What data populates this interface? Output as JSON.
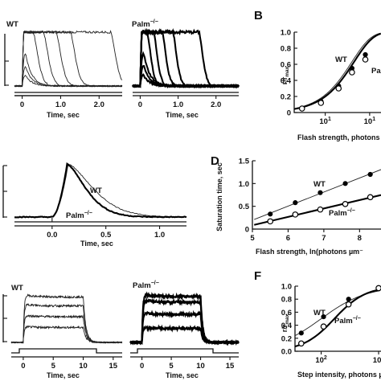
{
  "panels": {
    "a_wt": {
      "label": "WT",
      "xlabel": "Time, sec",
      "xticks": [
        "0",
        "1.0",
        "2.0"
      ]
    },
    "a_palm": {
      "label_main": "Palm",
      "label_sup": "−/−",
      "xlabel": "Time, sec",
      "xticks": [
        "0",
        "1.0",
        "2.0"
      ]
    },
    "b": {
      "letter": "B",
      "ylabel_r": "r/r",
      "ylabel_sub": "max",
      "xlabel": "Flash strength, photons",
      "yticks": [
        "0",
        "0.2",
        "0.4",
        "0.6",
        "0.8",
        "1.0"
      ],
      "xticks": [
        "10",
        "10"
      ],
      "xtick_exp": "1",
      "legend_wt": "WT",
      "legend_palm": "Pa"
    },
    "c": {
      "xlabel": "Time, sec",
      "xticks": [
        "0.0",
        "0.5",
        "1.0"
      ],
      "legend_wt": "WT",
      "legend_palm_main": "Palm",
      "legend_palm_sup": "−/−"
    },
    "d": {
      "letter": "D",
      "ylabel": "Saturation time, sec",
      "xlabel": "Flash strength, ln(photons µm⁻",
      "yticks": [
        "0",
        "0.5",
        "1.0",
        "1.5"
      ],
      "xticks": [
        "5",
        "6",
        "7",
        "8"
      ],
      "legend_wt": "WT",
      "legend_palm_main": "Palm",
      "legend_palm_sup": "−/−"
    },
    "e_wt": {
      "label": "WT",
      "xlabel": "Time, sec",
      "xticks": [
        "0",
        "5",
        "10",
        "15"
      ]
    },
    "e_palm": {
      "label_main": "Palm",
      "label_sup": "−/−",
      "xlabel": "Time, sec",
      "xticks": [
        "0",
        "5",
        "10",
        "15"
      ]
    },
    "f": {
      "letter": "F",
      "ylabel_r": "r/r",
      "ylabel_sub": "max",
      "xlabel": "Step intensity, photons µm",
      "yticks": [
        "0.0",
        "0.2",
        "0.4",
        "0.6",
        "0.8",
        "1.0"
      ],
      "xticks": [
        "10",
        "10"
      ],
      "xtick_exp": "2",
      "legend_wt": "WT",
      "legend_palm_main": "Palm",
      "legend_palm_sup": "−/−"
    }
  },
  "chart_data": [
    {
      "type": "line",
      "panel": "A-WT",
      "xlabel": "Time, sec",
      "xlim": [
        -0.2,
        2.6
      ],
      "series": [
        {
          "amp": 0.2,
          "sat": 0.0
        },
        {
          "amp": 0.36,
          "sat": 0.0
        },
        {
          "amp": 0.6,
          "sat": 0.0
        },
        {
          "amp": 1.0,
          "sat": 0.28
        },
        {
          "amp": 1.0,
          "sat": 0.55
        },
        {
          "amp": 1.0,
          "sat": 0.88
        },
        {
          "amp": 1.0,
          "sat": 1.25
        },
        {
          "amp": 1.0,
          "sat": 2.3
        }
      ]
    },
    {
      "type": "line",
      "panel": "A-Palm-/-",
      "xlabel": "Time, sec",
      "xlim": [
        -0.2,
        2.6
      ],
      "series": [
        {
          "amp": 0.2,
          "sat": 0.0
        },
        {
          "amp": 0.38,
          "sat": 0.0
        },
        {
          "amp": 0.62,
          "sat": 0.0
        },
        {
          "amp": 1.0,
          "sat": 0.18
        },
        {
          "amp": 1.0,
          "sat": 0.35
        },
        {
          "amp": 1.0,
          "sat": 0.58
        },
        {
          "amp": 1.0,
          "sat": 0.86
        },
        {
          "amp": 1.0,
          "sat": 1.55
        }
      ]
    },
    {
      "type": "scatter",
      "panel": "B",
      "xscale": "log",
      "xlim": [
        2,
        180
      ],
      "ylim": [
        0,
        1.0
      ],
      "xlabel": "Flash strength, photons",
      "ylabel": "r/rmax",
      "series": [
        {
          "name": "WT",
          "x": [
            3,
            8,
            20,
            40,
            80
          ],
          "y": [
            0.05,
            0.14,
            0.33,
            0.55,
            0.72
          ]
        },
        {
          "name": "Pa",
          "x": [
            3,
            8,
            20,
            40,
            80
          ],
          "y": [
            0.05,
            0.12,
            0.3,
            0.5,
            0.66
          ]
        }
      ]
    },
    {
      "type": "line",
      "panel": "C",
      "xlabel": "Time, sec",
      "xlim": [
        -0.35,
        1.25
      ],
      "series": [
        {
          "name": "WT",
          "peak_t": 0.15,
          "tau": 0.32
        },
        {
          "name": "Palm−/−",
          "peak_t": 0.14,
          "tau": 0.24
        }
      ]
    },
    {
      "type": "scatter",
      "panel": "D",
      "xlim": [
        5,
        8.6
      ],
      "ylim": [
        0,
        1.5
      ],
      "xlabel": "Flash strength, ln(photons µm⁻",
      "ylabel": "Saturation time, sec",
      "series": [
        {
          "name": "WT",
          "x": [
            5.5,
            6.2,
            6.9,
            7.6,
            8.3
          ],
          "y": [
            0.33,
            0.58,
            0.8,
            1.0,
            1.2
          ]
        },
        {
          "name": "Palm−/−",
          "x": [
            5.5,
            6.2,
            6.9,
            7.6,
            8.3
          ],
          "y": [
            0.17,
            0.32,
            0.43,
            0.55,
            0.7
          ]
        }
      ]
    },
    {
      "type": "line",
      "panel": "E-WT",
      "xlabel": "Time, sec",
      "xlim": [
        -2,
        16.5
      ],
      "series": [
        {
          "amp": 0.32
        },
        {
          "amp": 0.55
        },
        {
          "amp": 0.78
        },
        {
          "amp": 0.97
        }
      ]
    },
    {
      "type": "line",
      "panel": "E-Palm-/-",
      "xlabel": "Time, sec",
      "xlim": [
        -2,
        16.5
      ],
      "series": [
        {
          "amp": 0.3
        },
        {
          "amp": 0.6
        },
        {
          "amp": 0.86
        },
        {
          "amp": 0.98
        }
      ]
    },
    {
      "type": "scatter",
      "panel": "F",
      "xscale": "log",
      "xlim": [
        35,
        1100
      ],
      "ylim": [
        0,
        1.0
      ],
      "xlabel": "Step intensity, photons µm",
      "ylabel": "r/rmax",
      "series": [
        {
          "name": "WT",
          "x": [
            45,
            110,
            300,
            1000
          ],
          "y": [
            0.28,
            0.53,
            0.8,
            0.97
          ]
        },
        {
          "name": "Palm−/−",
          "x": [
            45,
            110,
            300,
            1000
          ],
          "y": [
            0.12,
            0.38,
            0.72,
            0.97
          ]
        }
      ]
    }
  ]
}
